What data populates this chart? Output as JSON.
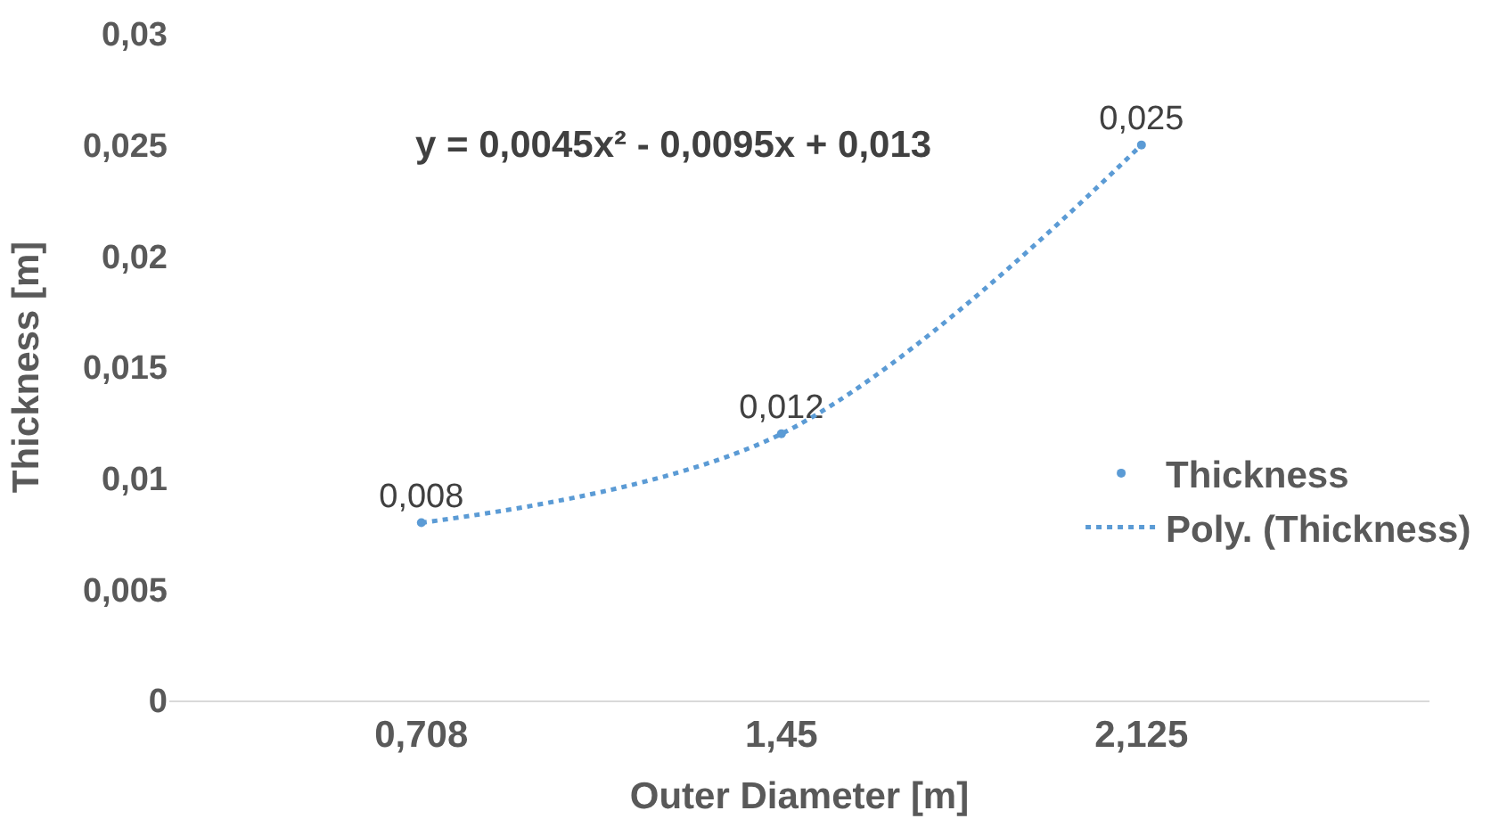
{
  "chart_data": {
    "type": "scatter",
    "xlabel": "Outer Diameter [m]",
    "ylabel": "Thickness [m]",
    "categories": [
      "0,708",
      "1,45",
      "2,125"
    ],
    "ylim": [
      0,
      0.03
    ],
    "yticks": [
      0,
      {
        "value": 0.005,
        "label": "0,005"
      },
      {
        "value": 0.01,
        "label": "0,01"
      },
      {
        "value": 0.015,
        "label": "0,015"
      },
      {
        "value": 0.02,
        "label": "0,02"
      },
      {
        "value": 0.025,
        "label": "0,025"
      },
      {
        "value": 0.03,
        "label": "0,03"
      }
    ],
    "grid": false,
    "legend": "right",
    "annotations": [
      "y = 0,0045x² - 0,0095x + 0,013"
    ],
    "series": [
      {
        "name": "Thickness",
        "marker": "circle",
        "color": "#5b9bd5",
        "values": [
          0.008,
          0.012,
          0.025
        ],
        "value_labels": [
          "0,008",
          "0,012",
          "0,025"
        ]
      },
      {
        "name": "Poly. (Thickness)",
        "type": "line",
        "line_style": "dotted",
        "color": "#5b9bd5",
        "values": [
          0.008,
          0.012,
          0.025
        ]
      }
    ]
  }
}
